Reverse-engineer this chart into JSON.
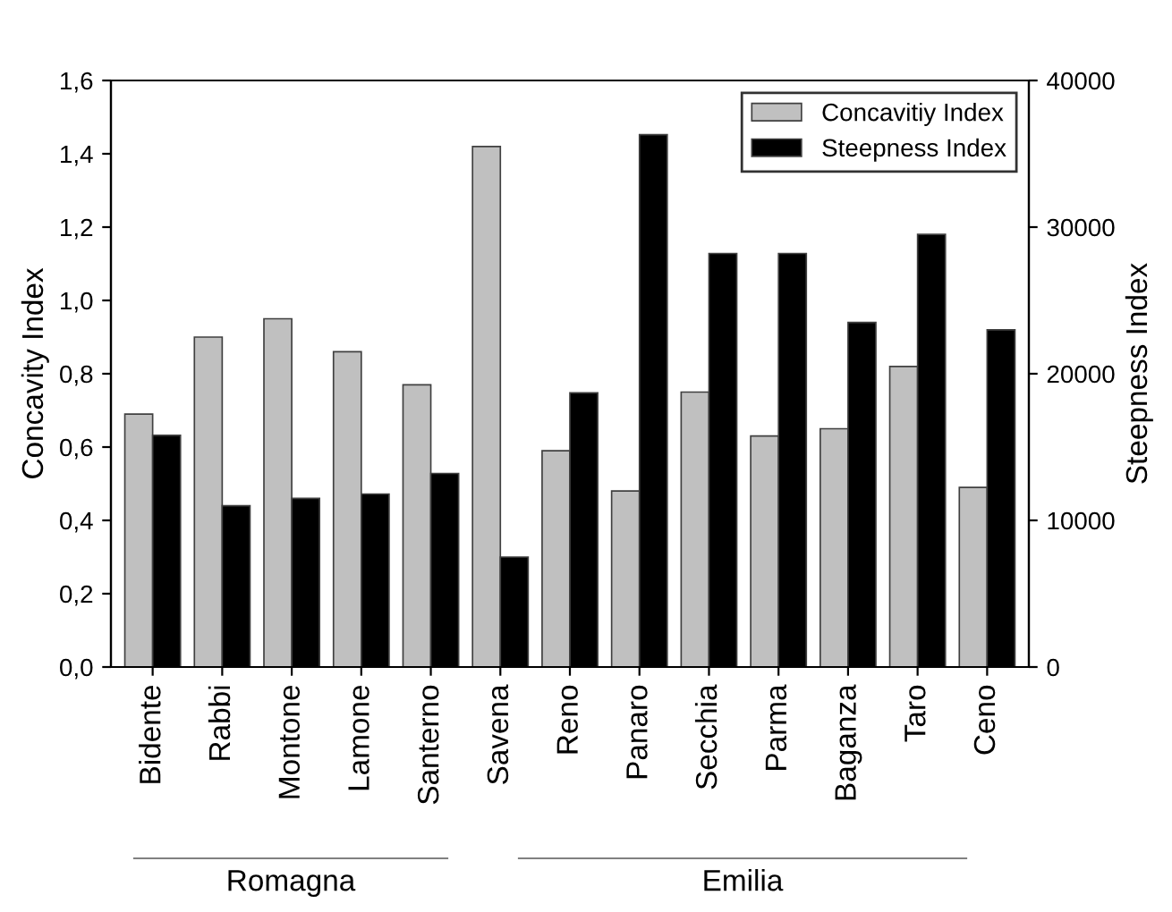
{
  "chart_data": {
    "type": "bar",
    "ylabel": "Concavity Index",
    "y2label": "Steepness Index",
    "categories": [
      "Bidente",
      "Rabbi",
      "Montone",
      "Lamone",
      "Santerno",
      "Savena",
      "Reno",
      "Panaro",
      "Secchia",
      "Parma",
      "Baganza",
      "Taro",
      "Ceno"
    ],
    "series": [
      {
        "name": "Concavitiy Index",
        "color": "#c0c0c0",
        "values": [
          0.69,
          0.9,
          0.95,
          0.86,
          0.77,
          1.42,
          0.59,
          0.48,
          0.75,
          0.63,
          0.65,
          0.82,
          0.49
        ]
      },
      {
        "name": "Steepness Index",
        "color": "#000000",
        "axis": "y2",
        "values": [
          15800,
          11000,
          11500,
          11800,
          13200,
          7500,
          18700,
          36300,
          28200,
          28200,
          23500,
          29500,
          23000
        ]
      }
    ],
    "ylim": [
      0,
      1.6
    ],
    "yticks": [
      {
        "value": 0,
        "label": "0,0"
      },
      {
        "value": 0.2,
        "label": "0,2"
      },
      {
        "value": 0.4,
        "label": "0,4"
      },
      {
        "value": 0.6,
        "label": "0,6"
      },
      {
        "value": 0.8,
        "label": "0,8"
      },
      {
        "value": 1.0,
        "label": "1,0"
      },
      {
        "value": 1.2,
        "label": "1,2"
      },
      {
        "value": 1.4,
        "label": "1,4"
      },
      {
        "value": 1.6,
        "label": "1,6"
      }
    ],
    "y2lim": [
      0,
      40000
    ],
    "y2ticks": [
      0,
      10000,
      20000,
      30000,
      40000
    ],
    "annotations": [
      "Romagna",
      "Emilia"
    ],
    "legend": "top right",
    "grid": false
  }
}
